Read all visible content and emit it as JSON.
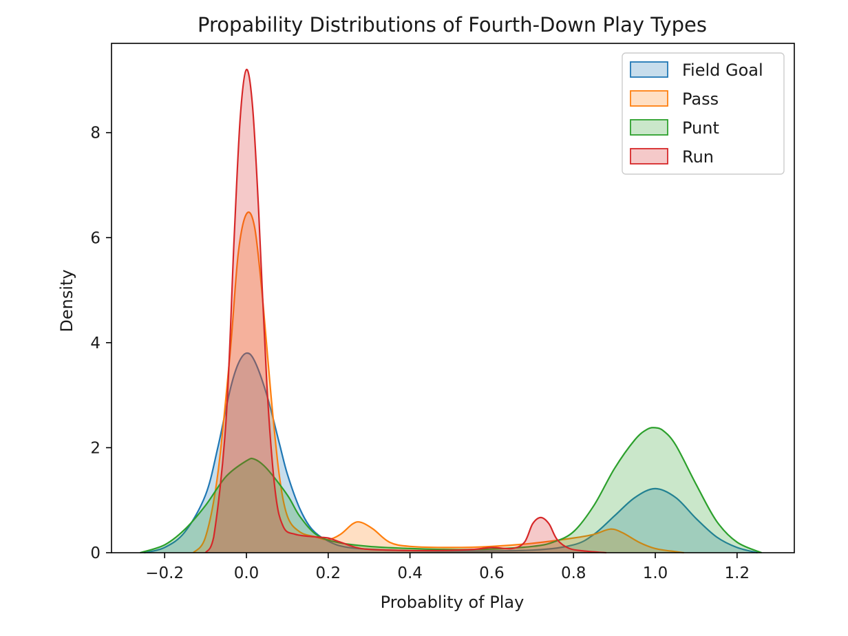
{
  "chart_data": {
    "type": "area",
    "title": "Propability Distributions of Fourth-Down Play Types",
    "xlabel": "Probablity of Play",
    "ylabel": "Density",
    "xlim": [
      -0.33,
      1.34
    ],
    "ylim": [
      0,
      9.7
    ],
    "xticks": [
      -0.2,
      0.0,
      0.2,
      0.4,
      0.6,
      0.8,
      1.0,
      1.2
    ],
    "xtick_labels": [
      "−0.2",
      "0.0",
      "0.2",
      "0.4",
      "0.6",
      "0.8",
      "1.0",
      "1.2"
    ],
    "yticks": [
      0,
      2,
      4,
      6,
      8
    ],
    "ytick_labels": [
      "0",
      "2",
      "4",
      "6",
      "8"
    ],
    "grid": false,
    "legend_position": "top-right",
    "series": [
      {
        "name": "Field Goal",
        "color": "#1f77b4",
        "points": [
          [
            -0.25,
            0
          ],
          [
            -0.2,
            0.1
          ],
          [
            -0.15,
            0.4
          ],
          [
            -0.1,
            1.1
          ],
          [
            -0.07,
            2.0
          ],
          [
            -0.04,
            3.1
          ],
          [
            -0.02,
            3.6
          ],
          [
            0.0,
            3.8
          ],
          [
            0.02,
            3.65
          ],
          [
            0.05,
            3.0
          ],
          [
            0.08,
            2.1
          ],
          [
            0.1,
            1.5
          ],
          [
            0.13,
            0.85
          ],
          [
            0.16,
            0.45
          ],
          [
            0.2,
            0.22
          ],
          [
            0.25,
            0.1
          ],
          [
            0.35,
            0.05
          ],
          [
            0.5,
            0.03
          ],
          [
            0.7,
            0.05
          ],
          [
            0.8,
            0.15
          ],
          [
            0.85,
            0.35
          ],
          [
            0.9,
            0.7
          ],
          [
            0.95,
            1.05
          ],
          [
            1.0,
            1.22
          ],
          [
            1.05,
            1.05
          ],
          [
            1.1,
            0.65
          ],
          [
            1.15,
            0.3
          ],
          [
            1.2,
            0.1
          ],
          [
            1.25,
            0
          ]
        ]
      },
      {
        "name": "Pass",
        "color": "#ff7f0e",
        "points": [
          [
            -0.13,
            0
          ],
          [
            -0.1,
            0.3
          ],
          [
            -0.07,
            1.5
          ],
          [
            -0.04,
            3.8
          ],
          [
            -0.02,
            5.7
          ],
          [
            0.0,
            6.45
          ],
          [
            0.02,
            6.2
          ],
          [
            0.04,
            4.8
          ],
          [
            0.06,
            3.0
          ],
          [
            0.08,
            1.5
          ],
          [
            0.1,
            0.7
          ],
          [
            0.13,
            0.4
          ],
          [
            0.17,
            0.3
          ],
          [
            0.2,
            0.25
          ],
          [
            0.23,
            0.35
          ],
          [
            0.26,
            0.55
          ],
          [
            0.28,
            0.58
          ],
          [
            0.31,
            0.45
          ],
          [
            0.35,
            0.2
          ],
          [
            0.4,
            0.12
          ],
          [
            0.5,
            0.1
          ],
          [
            0.6,
            0.12
          ],
          [
            0.7,
            0.18
          ],
          [
            0.8,
            0.28
          ],
          [
            0.85,
            0.35
          ],
          [
            0.89,
            0.45
          ],
          [
            0.92,
            0.38
          ],
          [
            0.96,
            0.2
          ],
          [
            1.0,
            0.08
          ],
          [
            1.05,
            0.02
          ],
          [
            1.07,
            0
          ]
        ]
      },
      {
        "name": "Punt",
        "color": "#2ca02c",
        "points": [
          [
            -0.26,
            0
          ],
          [
            -0.2,
            0.15
          ],
          [
            -0.15,
            0.45
          ],
          [
            -0.1,
            0.9
          ],
          [
            -0.05,
            1.45
          ],
          [
            0.0,
            1.75
          ],
          [
            0.02,
            1.78
          ],
          [
            0.05,
            1.6
          ],
          [
            0.1,
            1.1
          ],
          [
            0.13,
            0.7
          ],
          [
            0.17,
            0.35
          ],
          [
            0.22,
            0.2
          ],
          [
            0.3,
            0.12
          ],
          [
            0.4,
            0.08
          ],
          [
            0.5,
            0.06
          ],
          [
            0.6,
            0.07
          ],
          [
            0.7,
            0.12
          ],
          [
            0.75,
            0.2
          ],
          [
            0.8,
            0.4
          ],
          [
            0.85,
            0.9
          ],
          [
            0.9,
            1.6
          ],
          [
            0.95,
            2.15
          ],
          [
            0.98,
            2.35
          ],
          [
            1.0,
            2.38
          ],
          [
            1.02,
            2.32
          ],
          [
            1.05,
            2.05
          ],
          [
            1.1,
            1.3
          ],
          [
            1.15,
            0.6
          ],
          [
            1.2,
            0.2
          ],
          [
            1.26,
            0
          ]
        ]
      },
      {
        "name": "Run",
        "color": "#d62728",
        "points": [
          [
            -0.1,
            0
          ],
          [
            -0.08,
            0.3
          ],
          [
            -0.05,
            2.5
          ],
          [
            -0.03,
            6.0
          ],
          [
            -0.015,
            8.3
          ],
          [
            0.0,
            9.2
          ],
          [
            0.015,
            8.5
          ],
          [
            0.03,
            6.5
          ],
          [
            0.05,
            3.2
          ],
          [
            0.07,
            1.2
          ],
          [
            0.09,
            0.5
          ],
          [
            0.12,
            0.35
          ],
          [
            0.17,
            0.3
          ],
          [
            0.2,
            0.28
          ],
          [
            0.23,
            0.2
          ],
          [
            0.28,
            0.08
          ],
          [
            0.35,
            0.05
          ],
          [
            0.45,
            0.04
          ],
          [
            0.55,
            0.06
          ],
          [
            0.6,
            0.1
          ],
          [
            0.65,
            0.08
          ],
          [
            0.68,
            0.2
          ],
          [
            0.7,
            0.55
          ],
          [
            0.72,
            0.67
          ],
          [
            0.74,
            0.55
          ],
          [
            0.76,
            0.25
          ],
          [
            0.79,
            0.08
          ],
          [
            0.83,
            0.03
          ],
          [
            0.88,
            0
          ]
        ]
      }
    ]
  }
}
